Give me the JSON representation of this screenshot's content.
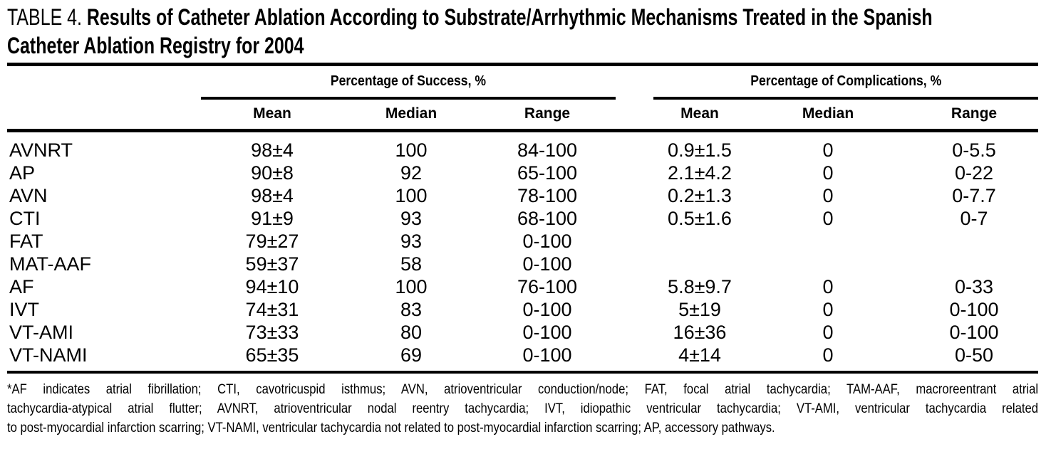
{
  "title": {
    "prefix": "TABLE 4.",
    "lines": [
      "Results of Catheter Ablation According to Substrate/Arrhythmic Mechanisms Treated in the Spanish",
      "Catheter Ablation Registry for 2004"
    ]
  },
  "table": {
    "col_groups": [
      {
        "label": "Percentage of Success, %",
        "sub_headers": [
          "Mean",
          "Median",
          "Range"
        ]
      },
      {
        "label": "Percentage of Complications, %",
        "sub_headers": [
          "Mean",
          "Median",
          "Range"
        ]
      }
    ],
    "rows": [
      {
        "label": "AVNRT",
        "success": {
          "mean": "98±4",
          "median": "100",
          "range": "84-100"
        },
        "complications": {
          "mean": "0.9±1.5",
          "median": "0",
          "range": "0-5.5"
        }
      },
      {
        "label": "AP",
        "success": {
          "mean": "90±8",
          "median": "92",
          "range": "65-100"
        },
        "complications": {
          "mean": "2.1±4.2",
          "median": "0",
          "range": "0-22"
        }
      },
      {
        "label": "AVN",
        "success": {
          "mean": "98±4",
          "median": "100",
          "range": "78-100"
        },
        "complications": {
          "mean": "0.2±1.3",
          "median": "0",
          "range": "0-7.7"
        }
      },
      {
        "label": "CTI",
        "success": {
          "mean": "91±9",
          "median": "93",
          "range": "68-100"
        },
        "complications": {
          "mean": "0.5±1.6",
          "median": "0",
          "range": "0-7"
        }
      },
      {
        "label": "FAT",
        "success": {
          "mean": "79±27",
          "median": "93",
          "range": "0-100"
        },
        "complications": {
          "mean": "",
          "median": "",
          "range": ""
        }
      },
      {
        "label": "MAT-AAF",
        "success": {
          "mean": "59±37",
          "median": "58",
          "range": "0-100"
        },
        "complications": {
          "mean": "",
          "median": "",
          "range": ""
        }
      },
      {
        "label": "AF",
        "success": {
          "mean": "94±10",
          "median": "100",
          "range": "76-100"
        },
        "complications": {
          "mean": "5.8±9.7",
          "median": "0",
          "range": "0-33"
        }
      },
      {
        "label": "IVT",
        "success": {
          "mean": "74±31",
          "median": "83",
          "range": "0-100"
        },
        "complications": {
          "mean": "5±19",
          "median": "0",
          "range": "0-100"
        }
      },
      {
        "label": "VT-AMI",
        "success": {
          "mean": "73±33",
          "median": "80",
          "range": "0-100"
        },
        "complications": {
          "mean": "16±36",
          "median": "0",
          "range": "0-100"
        }
      },
      {
        "label": "VT-NAMI",
        "success": {
          "mean": "65±35",
          "median": "69",
          "range": "0-100"
        },
        "complications": {
          "mean": "4±14",
          "median": "0",
          "range": "0-50"
        }
      }
    ]
  },
  "footnote": {
    "lines": [
      "*AF indicates atrial fibrillation; CTI, cavotricuspid isthmus; AVN, atrioventricular conduction/node; FAT, focal atrial tachycardia; TAM-AAF, macroreentrant atrial",
      "tachycardia-atypical atrial flutter; AVNRT, atrioventricular nodal reentry tachycardia; IVT, idiopathic ventricular tachycardia; VT-AMI, ventricular tachycardia related",
      "to post-myocardial infarction scarring; VT-NAMI, ventricular tachycardia not related to post-myocardial infarction scarring; AP, accessory pathways."
    ]
  },
  "colors": {
    "text": "#000000",
    "background": "#ffffff",
    "rule": "#000000"
  }
}
